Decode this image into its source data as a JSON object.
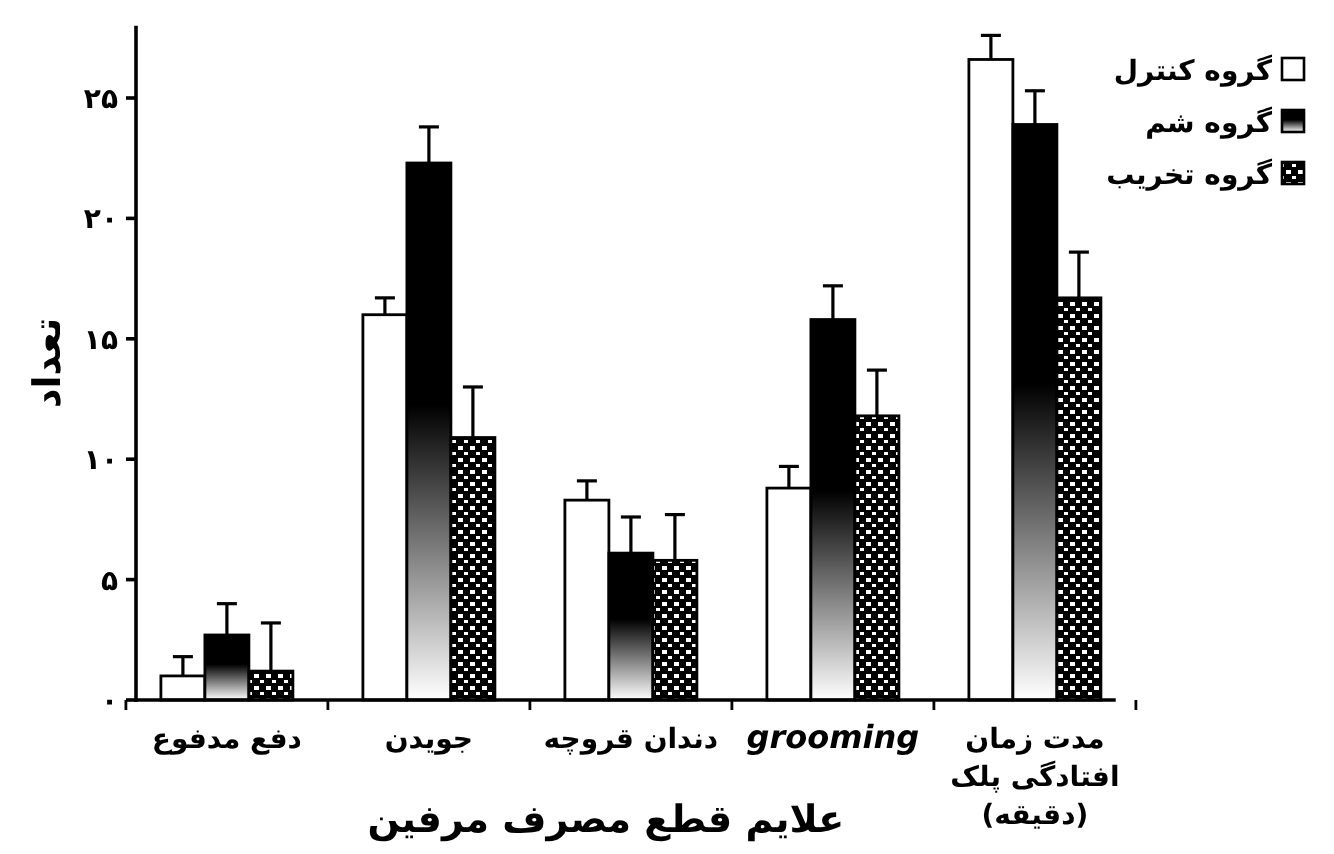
{
  "chart_data": {
    "type": "bar",
    "xlabel": "علایم قطع مصرف مرفین",
    "ylabel": "تعداد",
    "categories": [
      "دفع مدفوع",
      "جویدن",
      "دندان قروچه",
      "grooming",
      "مدت زمان افتادگی پلک (دقیقه)"
    ],
    "series": [
      {
        "name": "گروه کنترل",
        "color": "#ffffff",
        "values": [
          1.0,
          16.0,
          8.3,
          8.8,
          26.6
        ],
        "errors": [
          [
            1.0,
            1.8
          ],
          [
            16.0,
            16.7
          ],
          [
            8.3,
            9.1
          ],
          [
            8.8,
            9.7
          ],
          [
            26.6,
            27.6
          ]
        ]
      },
      {
        "name": "گروه شم",
        "color": "#000000",
        "values": [
          2.7,
          22.3,
          6.1,
          15.8,
          23.9
        ],
        "errors": [
          [
            2.7,
            4.0
          ],
          [
            22.3,
            23.8
          ],
          [
            6.1,
            7.6
          ],
          [
            15.8,
            17.2
          ],
          [
            23.9,
            25.3
          ]
        ]
      },
      {
        "name": "گروه تخریب",
        "color": "#000000",
        "values": [
          1.2,
          10.9,
          5.8,
          11.8,
          16.7
        ],
        "errors": [
          [
            1.2,
            3.2
          ],
          [
            10.9,
            13.0
          ],
          [
            5.8,
            7.7
          ],
          [
            11.8,
            13.7
          ],
          [
            16.7,
            18.6
          ]
        ]
      }
    ],
    "ylim": [
      0,
      28
    ],
    "yticks": [
      {
        "value": 0,
        "label": "۰"
      },
      {
        "value": 5,
        "label": "۵"
      },
      {
        "value": 10,
        "label": "۱۰"
      },
      {
        "value": 15,
        "label": "۱۵"
      },
      {
        "value": 20,
        "label": "۲۰"
      },
      {
        "value": 25,
        "label": "۲۵"
      }
    ],
    "legend": "top right"
  }
}
